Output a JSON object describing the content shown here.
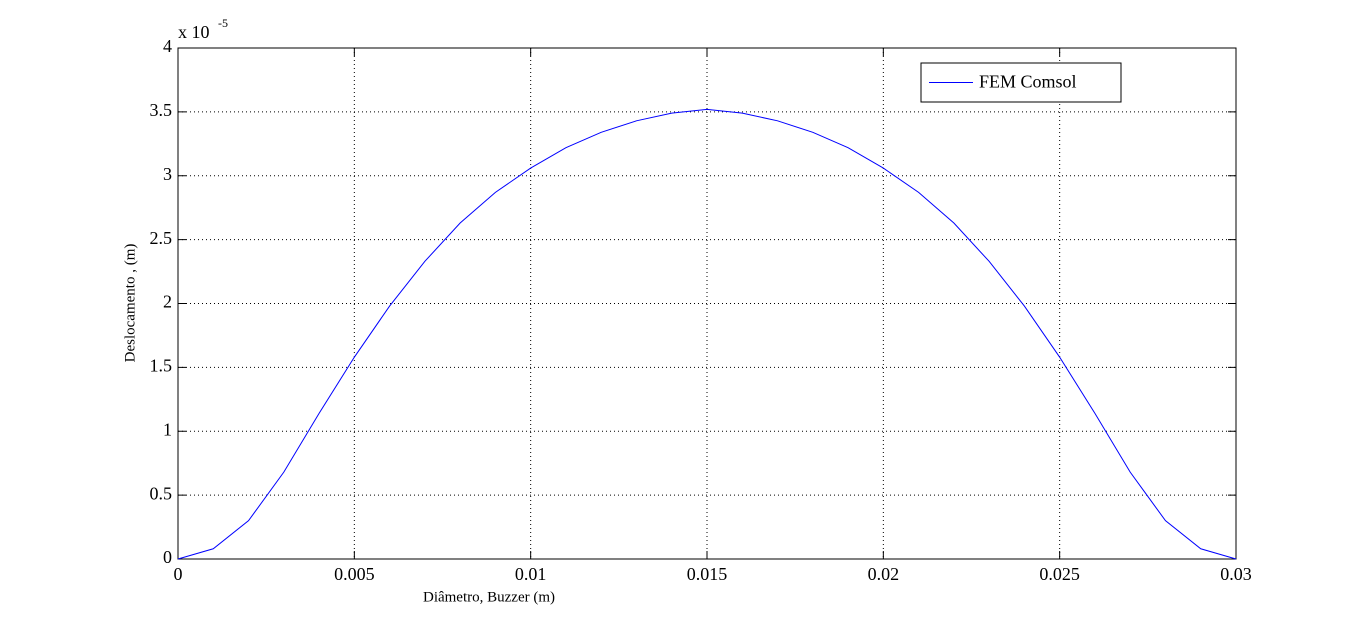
{
  "chart_data": {
    "type": "line",
    "xlabel": "Diâmetro, Buzzer (m)",
    "ylabel": "Deslocamento , (m)",
    "y_multiplier": {
      "base": "x 10",
      "exponent": "-5"
    },
    "x": [
      0,
      0.001,
      0.002,
      0.003,
      0.004,
      0.005,
      0.006,
      0.007,
      0.008,
      0.009,
      0.01,
      0.011,
      0.012,
      0.013,
      0.014,
      0.015,
      0.016,
      0.017,
      0.018,
      0.019,
      0.02,
      0.021,
      0.022,
      0.023,
      0.024,
      0.025,
      0.026,
      0.027,
      0.028,
      0.029,
      0.03
    ],
    "series": [
      {
        "name": "FEM Comsol",
        "color": "#0000ff",
        "values": [
          0,
          0.08,
          0.3,
          0.68,
          1.14,
          1.58,
          1.98,
          2.33,
          2.63,
          2.87,
          3.06,
          3.22,
          3.34,
          3.43,
          3.49,
          3.52,
          3.49,
          3.43,
          3.34,
          3.22,
          3.06,
          2.87,
          2.63,
          2.33,
          1.98,
          1.58,
          1.14,
          0.68,
          0.3,
          0.08,
          0
        ]
      }
    ],
    "xlim": [
      0,
      0.03
    ],
    "xticks": [
      0,
      0.005,
      0.01,
      0.015,
      0.02,
      0.025,
      0.03
    ],
    "ylim": [
      0,
      4
    ],
    "yticks": [
      0,
      0.5,
      1,
      1.5,
      2,
      2.5,
      3,
      3.5,
      4
    ],
    "grid": true,
    "legend": "upper-right"
  }
}
